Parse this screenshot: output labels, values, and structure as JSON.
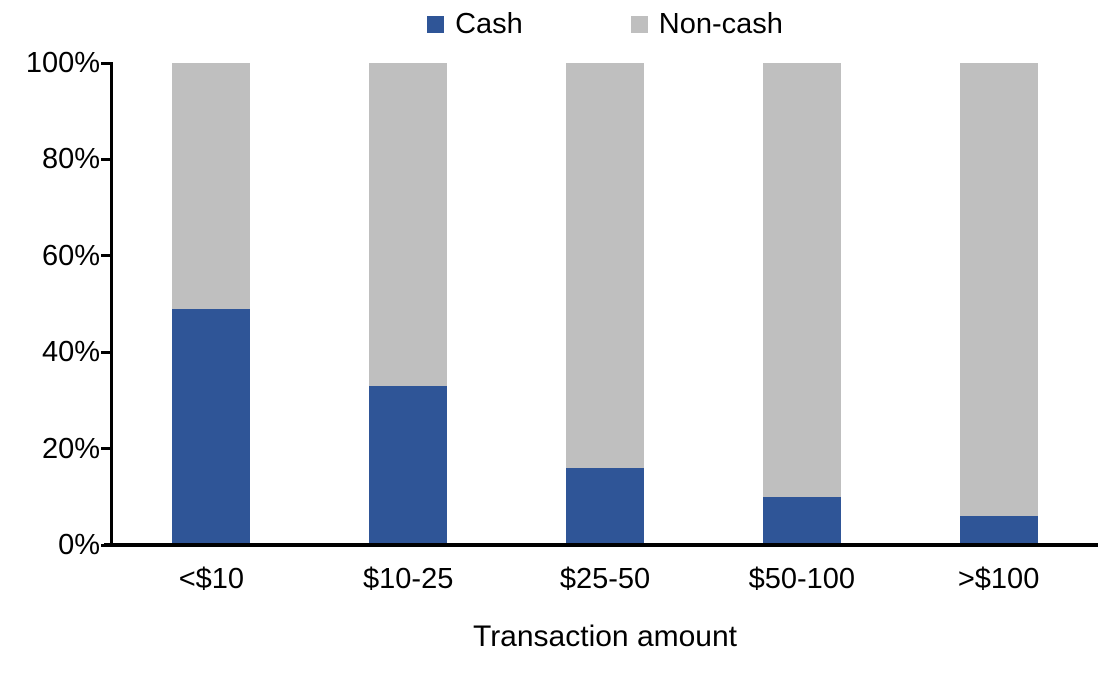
{
  "legend": {
    "position": "top-center",
    "items": [
      {
        "label": "Cash",
        "color": "#2F5597"
      },
      {
        "label": "Non-cash",
        "color": "#BFBFBF"
      }
    ]
  },
  "chart_data": {
    "type": "bar",
    "stacked": true,
    "normalized_percent": true,
    "title": "",
    "xlabel": "Transaction amount",
    "ylabel": "",
    "categories": [
      "<$10",
      "$10-25",
      "$25-50",
      "$50-100",
      ">$100"
    ],
    "series": [
      {
        "name": "Cash",
        "color": "#2F5597",
        "values": [
          49,
          33,
          16,
          10,
          6
        ]
      },
      {
        "name": "Non-cash",
        "color": "#BFBFBF",
        "values": [
          51,
          67,
          84,
          90,
          94
        ]
      }
    ],
    "ylim": [
      0,
      100
    ],
    "yticks": [
      "0%",
      "20%",
      "40%",
      "60%",
      "80%",
      "100%"
    ],
    "grid": false,
    "legend_position": "top-center",
    "axis_color": "#000000",
    "background_color": "#FFFFFF"
  }
}
